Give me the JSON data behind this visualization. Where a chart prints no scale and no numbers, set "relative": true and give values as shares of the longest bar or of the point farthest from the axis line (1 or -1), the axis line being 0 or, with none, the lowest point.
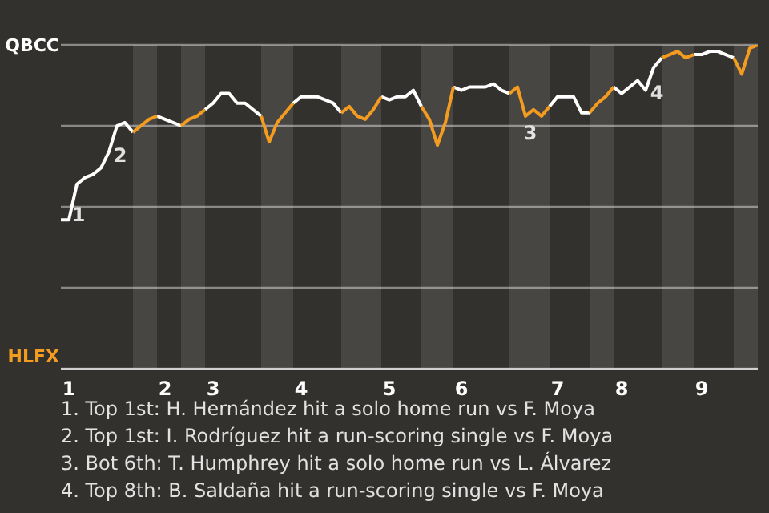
{
  "chart_data": {
    "type": "line",
    "relative": true,
    "categories": [
      null,
      "1",
      null,
      null,
      null,
      null,
      null,
      null,
      null,
      null,
      null,
      null,
      null,
      "2",
      null,
      null,
      null,
      null,
      null,
      "3",
      null,
      null,
      null,
      null,
      null,
      null,
      null,
      null,
      null,
      null,
      "4",
      null,
      null,
      null,
      null,
      null,
      null,
      null,
      null,
      null,
      null,
      "5",
      null,
      null,
      null,
      null,
      null,
      null,
      null,
      null,
      "6",
      null,
      null,
      null,
      null,
      null,
      null,
      null,
      null,
      null,
      null,
      null,
      "7",
      null,
      null,
      null,
      null,
      null,
      null,
      null,
      "8",
      null,
      null,
      null,
      null,
      null,
      null,
      null,
      null,
      null,
      "9",
      null,
      null,
      null,
      null,
      null,
      null,
      null
    ],
    "series": [
      {
        "color": "#ffffff",
        "values": [
          0.46,
          0.46,
          0.57,
          0.59,
          0.6,
          0.62,
          0.67,
          0.75,
          0.76,
          0.73,
          null,
          null,
          0.78,
          0.77,
          0.76,
          0.75,
          null,
          null,
          0.8,
          0.82,
          0.85,
          0.85,
          0.82,
          0.82,
          0.8,
          0.78,
          null,
          null,
          null,
          0.82,
          0.84,
          0.84,
          0.84,
          0.83,
          0.82,
          0.79,
          null,
          null,
          null,
          null,
          0.84,
          0.83,
          0.84,
          0.84,
          0.86,
          0.81,
          null,
          null,
          null,
          0.87,
          0.86,
          0.87,
          0.87,
          0.87,
          0.88,
          0.86,
          0.85,
          null,
          null,
          null,
          null,
          0.81,
          0.84,
          0.84,
          0.84,
          0.79,
          0.79,
          null,
          null,
          0.87,
          0.85,
          0.87,
          0.89,
          0.86,
          0.93,
          0.96,
          null,
          null,
          null,
          0.97,
          0.97,
          0.98,
          0.98,
          0.97,
          0.96,
          null,
          null,
          null
        ]
      },
      {
        "color": "#f39c1f",
        "values": [
          null,
          null,
          null,
          null,
          null,
          null,
          null,
          null,
          null,
          0.73,
          0.75,
          0.77,
          0.78,
          null,
          null,
          0.75,
          0.77,
          0.78,
          0.8,
          null,
          null,
          null,
          null,
          null,
          null,
          0.78,
          0.7,
          0.76,
          0.79,
          0.82,
          null,
          null,
          null,
          null,
          null,
          0.79,
          0.81,
          0.78,
          0.77,
          0.8,
          0.84,
          null,
          null,
          null,
          null,
          0.81,
          0.77,
          0.69,
          0.76,
          0.87,
          null,
          null,
          null,
          null,
          null,
          null,
          0.85,
          0.87,
          0.78,
          0.8,
          0.78,
          0.81,
          null,
          null,
          null,
          null,
          0.79,
          0.82,
          0.84,
          0.87,
          null,
          null,
          null,
          null,
          null,
          0.96,
          0.97,
          0.98,
          0.96,
          0.97,
          null,
          null,
          null,
          null,
          0.96,
          0.91,
          0.99,
          1
        ]
      }
    ],
    "grid": "y",
    "annotations": [
      "QBCC",
      "HLFX",
      "1",
      "2",
      "3",
      "4",
      "1. Top 1st: H. Hernández hit a solo home run vs F. Moya",
      "2. Top 1st: I. Rodríguez hit a run-scoring single vs F. Moya",
      "3. Bot 6th: T. Humphrey hit a solo home run vs L. Álvarez",
      "4. Top 8th: B. Saldaña hit a run-scoring single vs F. Moya"
    ]
  }
}
